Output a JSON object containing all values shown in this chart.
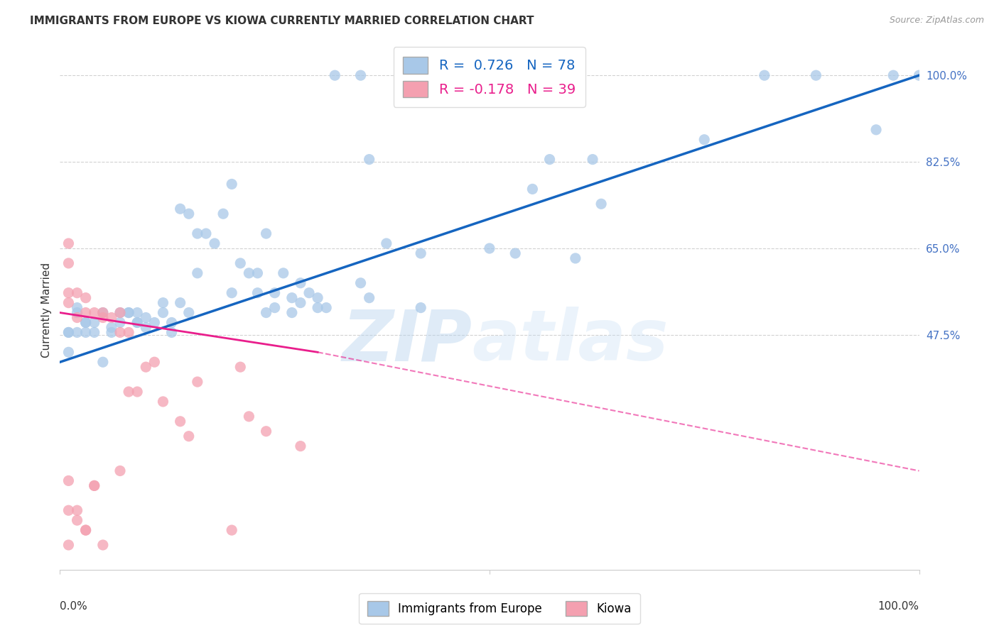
{
  "title": "IMMIGRANTS FROM EUROPE VS KIOWA CURRENTLY MARRIED CORRELATION CHART",
  "source": "Source: ZipAtlas.com",
  "ylabel": "Currently Married",
  "ytick_labels": [
    "100.0%",
    "82.5%",
    "65.0%",
    "47.5%"
  ],
  "ytick_values": [
    1.0,
    0.825,
    0.65,
    0.475
  ],
  "xlim": [
    0.0,
    1.0
  ],
  "ylim": [
    0.0,
    1.05
  ],
  "legend_europe": "R =  0.726   N = 78",
  "legend_kiowa": "R = -0.178   N = 39",
  "legend_label_europe": "Immigrants from Europe",
  "legend_label_kiowa": "Kiowa",
  "europe_color": "#a8c8e8",
  "kiowa_color": "#f4a0b0",
  "trendline_europe_color": "#1565C0",
  "trendline_kiowa_color": "#E91E8C",
  "background_color": "#ffffff",
  "watermark_zip": "ZIP",
  "watermark_atlas": "atlas",
  "blue_scatter_x": [
    0.32,
    0.35,
    0.14,
    0.15,
    0.16,
    0.17,
    0.18,
    0.19,
    0.2,
    0.2,
    0.21,
    0.22,
    0.23,
    0.23,
    0.24,
    0.25,
    0.26,
    0.27,
    0.28,
    0.29,
    0.3,
    0.3,
    0.31,
    0.13,
    0.13,
    0.14,
    0.12,
    0.12,
    0.11,
    0.1,
    0.1,
    0.09,
    0.08,
    0.07,
    0.07,
    0.06,
    0.06,
    0.05,
    0.04,
    0.03,
    0.02,
    0.35,
    0.36,
    0.38,
    0.25,
    0.27,
    0.28,
    0.42,
    0.5,
    0.53,
    0.55,
    0.57,
    0.6,
    0.62,
    0.63,
    0.75,
    0.82,
    0.88,
    0.95,
    0.97,
    1.0,
    0.01,
    0.01,
    0.01,
    0.02,
    0.02,
    0.03,
    0.03,
    0.04,
    0.05,
    0.08,
    0.09,
    0.09,
    0.36,
    0.42,
    0.15,
    0.16,
    0.24
  ],
  "blue_scatter_y": [
    1.0,
    1.0,
    0.73,
    0.72,
    0.68,
    0.68,
    0.66,
    0.72,
    0.78,
    0.56,
    0.62,
    0.6,
    0.6,
    0.56,
    0.68,
    0.56,
    0.6,
    0.55,
    0.58,
    0.56,
    0.55,
    0.53,
    0.53,
    0.5,
    0.48,
    0.54,
    0.54,
    0.52,
    0.5,
    0.51,
    0.49,
    0.5,
    0.52,
    0.5,
    0.52,
    0.49,
    0.48,
    0.52,
    0.5,
    0.5,
    0.53,
    0.58,
    0.83,
    0.66,
    0.53,
    0.52,
    0.54,
    0.64,
    0.65,
    0.64,
    0.77,
    0.83,
    0.63,
    0.83,
    0.74,
    0.87,
    1.0,
    1.0,
    0.89,
    1.0,
    1.0,
    0.48,
    0.48,
    0.44,
    0.48,
    0.52,
    0.48,
    0.5,
    0.48,
    0.42,
    0.52,
    0.5,
    0.52,
    0.55,
    0.53,
    0.52,
    0.6,
    0.52
  ],
  "pink_scatter_x": [
    0.01,
    0.01,
    0.01,
    0.01,
    0.01,
    0.01,
    0.02,
    0.02,
    0.02,
    0.03,
    0.03,
    0.03,
    0.04,
    0.04,
    0.05,
    0.05,
    0.06,
    0.07,
    0.07,
    0.08,
    0.08,
    0.09,
    0.1,
    0.11,
    0.12,
    0.14,
    0.15,
    0.16,
    0.2,
    0.21,
    0.22,
    0.24,
    0.28,
    0.01,
    0.02,
    0.03,
    0.04,
    0.05,
    0.07
  ],
  "pink_scatter_y": [
    0.66,
    0.62,
    0.56,
    0.54,
    0.18,
    0.12,
    0.56,
    0.51,
    0.1,
    0.55,
    0.52,
    0.08,
    0.52,
    0.17,
    0.51,
    0.52,
    0.51,
    0.52,
    0.48,
    0.48,
    0.36,
    0.36,
    0.41,
    0.42,
    0.34,
    0.3,
    0.27,
    0.38,
    0.08,
    0.41,
    0.31,
    0.28,
    0.25,
    0.05,
    0.12,
    0.08,
    0.17,
    0.05,
    0.2
  ],
  "trendline_blue_x0": 0.0,
  "trendline_blue_x1": 1.0,
  "trendline_blue_y0": 0.42,
  "trendline_blue_y1": 1.0,
  "trendline_pink_solid_x0": 0.0,
  "trendline_pink_solid_x1": 0.3,
  "trendline_pink_solid_y0": 0.52,
  "trendline_pink_solid_y1": 0.44,
  "trendline_pink_dash_x0": 0.3,
  "trendline_pink_dash_x1": 1.0,
  "trendline_pink_dash_y0": 0.44,
  "trendline_pink_dash_y1": 0.2
}
